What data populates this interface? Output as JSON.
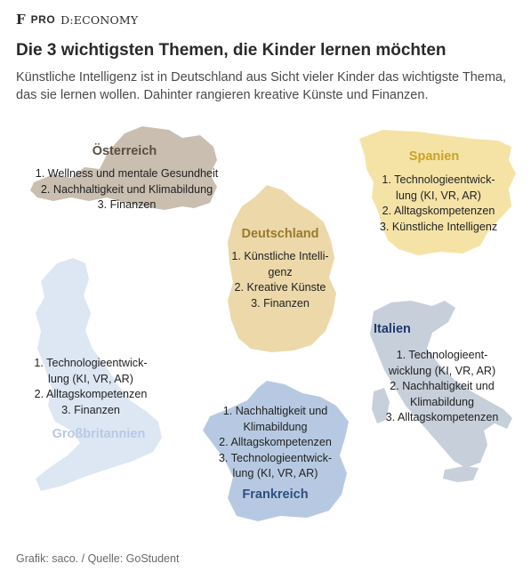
{
  "header": {
    "brand_f": "F",
    "brand_pro": "PRO",
    "brand_section": "D:ECONOMY"
  },
  "title": "Die 3 wichtigsten Themen, die Kinder lernen möchten",
  "subtitle_line1": "Künstliche Intelligenz ist in Deutschland aus Sicht vieler Kinder das wichtigste Thema,",
  "subtitle_line2": "das sie lernen wollen. Dahinter rangieren kreative Künste und Finanzen.",
  "countries": {
    "oesterreich": {
      "name": "Österreich",
      "color": "#c9beb0",
      "label_color": "#5a4e42",
      "items": [
        "1. Wellness und mentale Gesundheit",
        "2. Nachhaltigkeit und Klimabildung",
        "3. Finanzen"
      ]
    },
    "spanien": {
      "name": "Spanien",
      "color": "#f5e3a6",
      "label_color": "#c9a227",
      "items": [
        "1. Technologieentwick-",
        "lung (KI, VR, AR)",
        "2. Alltagskompetenzen",
        "3. Künstliche Intelligenz"
      ]
    },
    "deutschland": {
      "name": "Deutschland",
      "color": "#ecd8a9",
      "label_color": "#9a7a2c",
      "items": [
        "1. Künstliche Intelli-",
        "genz",
        "2. Kreative Künste",
        "3. Finanzen"
      ]
    },
    "grossbritannien": {
      "name": "Großbritannien",
      "color": "#dde7f3",
      "label_color": "#b7c9e2",
      "items": [
        "1. Technologieentwick-",
        "lung (KI, VR, AR)",
        "2. Alltagskompetenzen",
        "3. Finanzen"
      ]
    },
    "frankreich": {
      "name": "Frankreich",
      "color": "#b7c9e2",
      "label_color": "#2f4f7f",
      "items": [
        "1. Nachhaltigkeit und",
        "Klimabildung",
        "2. Alltagskompetenzen",
        "3. Technologieentwick-",
        "lung (KI, VR, AR)"
      ]
    },
    "italien": {
      "name": "Italien",
      "color": "#c7cfdb",
      "label_color": "#1f3a6e",
      "items": [
        "1. Technologieent-",
        "wicklung (KI, VR, AR)",
        "2. Nachhaltigkeit und",
        "Klimabildung",
        "3. Alltagskompetenzen"
      ]
    }
  },
  "footer": "Grafik: saco. / Quelle: GoStudent"
}
